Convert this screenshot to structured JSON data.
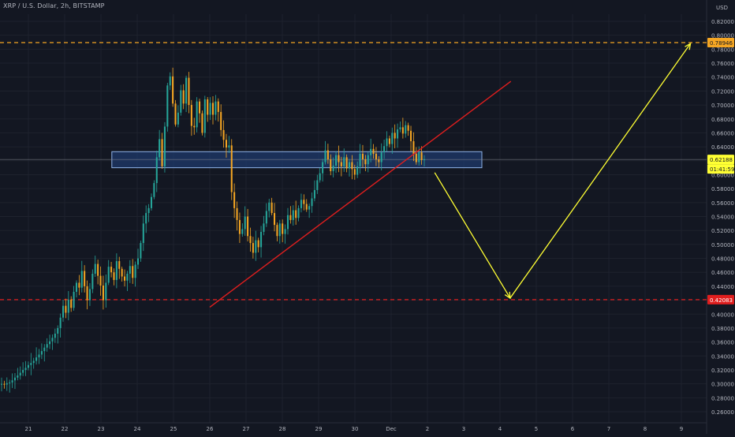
{
  "header": {
    "title": "XRP / U.S. Dollar, 2h, BITSTAMP",
    "currency": "USD"
  },
  "colors": {
    "background": "#131722",
    "grid": "#1e222d",
    "up": "#26a69a",
    "down": "#f5a623",
    "text": "#b2b5be",
    "trendline": "#e01e1e",
    "arrow": "#ffff33",
    "resistance_line": "#f5a623",
    "support_line": "#e01e1e",
    "zone_fill": "#1f3a6b",
    "zone_border": "#8fb3e8"
  },
  "chart_data": {
    "type": "candlestick",
    "title": "XRP / U.S. Dollar, 2h, BITSTAMP",
    "ylabel": "USD",
    "ylim": [
      0.25,
      0.84
    ],
    "scale": "linear",
    "grid": true,
    "x_ticks": [
      "21",
      "22",
      "23",
      "24",
      "25",
      "26",
      "27",
      "28",
      "29",
      "30",
      "Dec",
      "2",
      "3",
      "4",
      "5",
      "6",
      "7",
      "8",
      "9"
    ],
    "y_ticks": [
      "0.82000",
      "0.80000",
      "0.78000",
      "0.76000",
      "0.74000",
      "0.72000",
      "0.70000",
      "0.68000",
      "0.66000",
      "0.64000",
      "0.62000",
      "0.60000",
      "0.58000",
      "0.56000",
      "0.54000",
      "0.52000",
      "0.50000",
      "0.48000",
      "0.46000",
      "0.44000",
      "0.42000",
      "0.40000",
      "0.38000",
      "0.36000",
      "0.34000",
      "0.32000",
      "0.30000",
      "0.28000",
      "0.26000"
    ],
    "x_range": [
      0,
      19.4
    ],
    "series_close": [
      0.3,
      0.299,
      0.301,
      0.302,
      0.305,
      0.309,
      0.312,
      0.316,
      0.32,
      0.323,
      0.327,
      0.33,
      0.333,
      0.338,
      0.342,
      0.347,
      0.352,
      0.357,
      0.361,
      0.366,
      0.372,
      0.38,
      0.395,
      0.412,
      0.402,
      0.421,
      0.409,
      0.432,
      0.445,
      0.438,
      0.462,
      0.44,
      0.42,
      0.436,
      0.458,
      0.472,
      0.455,
      0.441,
      0.42,
      0.445,
      0.468,
      0.46,
      0.449,
      0.476,
      0.465,
      0.454,
      0.448,
      0.458,
      0.469,
      0.452,
      0.471,
      0.48,
      0.502,
      0.53,
      0.545,
      0.552,
      0.568,
      0.588,
      0.625,
      0.651,
      0.612,
      0.669,
      0.728,
      0.741,
      0.702,
      0.672,
      0.689,
      0.721,
      0.702,
      0.739,
      0.7,
      0.67,
      0.668,
      0.705,
      0.688,
      0.66,
      0.708,
      0.686,
      0.703,
      0.686,
      0.705,
      0.69,
      0.664,
      0.65,
      0.639,
      0.642,
      0.575,
      0.552,
      0.535,
      0.515,
      0.522,
      0.54,
      0.512,
      0.502,
      0.488,
      0.506,
      0.496,
      0.518,
      0.53,
      0.548,
      0.56,
      0.545,
      0.528,
      0.512,
      0.53,
      0.515,
      0.522,
      0.542,
      0.535,
      0.549,
      0.538,
      0.552,
      0.564,
      0.558,
      0.55,
      0.555,
      0.566,
      0.578,
      0.592,
      0.602,
      0.618,
      0.635,
      0.622,
      0.605,
      0.613,
      0.628,
      0.618,
      0.612,
      0.625,
      0.609,
      0.618,
      0.608,
      0.6,
      0.612,
      0.63,
      0.622,
      0.615,
      0.628,
      0.637,
      0.63,
      0.622,
      0.618,
      0.632,
      0.641,
      0.652,
      0.644,
      0.66,
      0.652,
      0.665,
      0.668,
      0.659,
      0.671,
      0.663,
      0.648,
      0.63,
      0.618,
      0.632,
      0.621,
      0.622
    ],
    "overlays": {
      "resistance_level": {
        "label": "0.78946",
        "value": 0.78946
      },
      "support_level": {
        "label": "0.42083",
        "value": 0.42083
      },
      "current_price": {
        "label": "0.62188",
        "value": 0.62188
      },
      "countdown": "01:41:59",
      "zone": {
        "low": 0.61,
        "high": 0.633,
        "x_start": 2.3,
        "x_end": 12.5
      },
      "trendline": {
        "x1": 5.0,
        "y1": 0.41,
        "x2": 13.3,
        "y2": 0.734
      },
      "projection": [
        {
          "x": 11.2,
          "y": 0.603
        },
        {
          "x": 13.28,
          "y": 0.423
        },
        {
          "x": 18.25,
          "y": 0.788
        }
      ]
    }
  }
}
